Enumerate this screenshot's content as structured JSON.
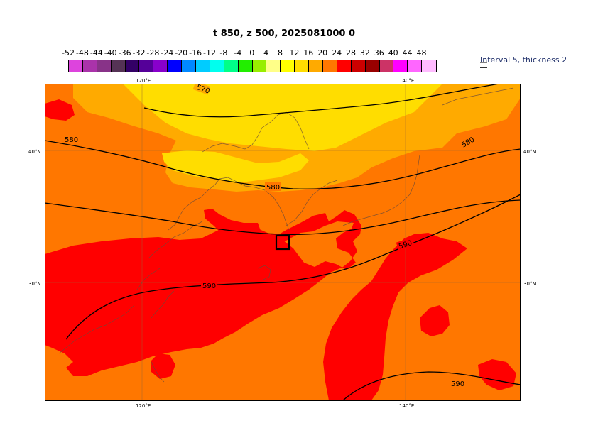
{
  "title": "t 850, z 500, 2025081000 0",
  "colorbar": {
    "ticks": [
      "-52",
      "-48",
      "-44",
      "-40",
      "-36",
      "-32",
      "-28",
      "-24",
      "-20",
      "-16",
      "-12",
      "-8",
      "-4",
      "0",
      "4",
      "8",
      "12",
      "16",
      "20",
      "24",
      "28",
      "32",
      "36",
      "40",
      "44",
      "48"
    ],
    "colors": [
      "#dd44dd",
      "#aa33aa",
      "#883388",
      "#553355",
      "#330066",
      "#550099",
      "#8800cc",
      "#0000ff",
      "#0088ff",
      "#00ccff",
      "#00ffee",
      "#00ff88",
      "#22ee00",
      "#99ee00",
      "#ffff88",
      "#ffff00",
      "#ffdd00",
      "#ffaa00",
      "#ff7700",
      "#ff0000",
      "#cc0000",
      "#990000",
      "#cc3366",
      "#ff00ff",
      "#ff66ff",
      "#ffbbff"
    ],
    "note": "Interval 5, thickness 2"
  },
  "axes": {
    "lon_top": [
      "120°E",
      "140°E"
    ],
    "lon_bottom": [
      "120°E",
      "140°E"
    ],
    "lat_left": [
      "40°N",
      "30°N"
    ],
    "lat_right": [
      "40°N",
      "30°N"
    ]
  },
  "contour_labels": [
    "570",
    "580",
    "580",
    "580",
    "590",
    "590",
    "590"
  ],
  "field_colors": {
    "warm_orange": "#ff7700",
    "light_orange": "#ffaa00",
    "yellow": "#ffdd00",
    "red": "#ff0000"
  }
}
